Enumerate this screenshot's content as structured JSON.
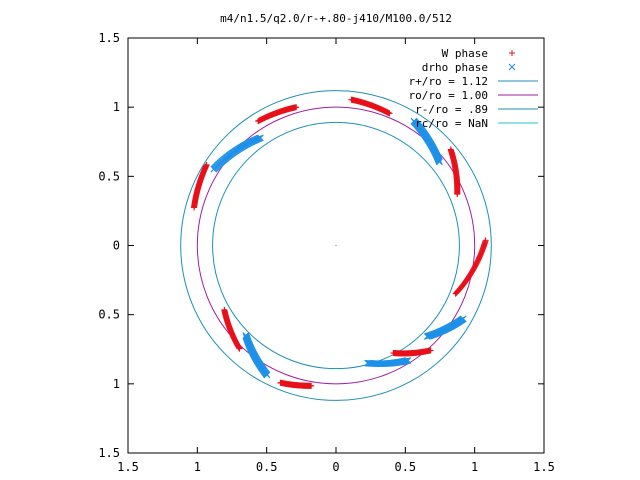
{
  "chart_data": {
    "type": "scatter",
    "title": "m4/n1.5/q2.0/r-+.80-j410/M100.0/512",
    "xlim": [
      -1.5,
      1.5
    ],
    "ylim": [
      -1.5,
      1.5
    ],
    "x_ticks": [
      -1.5,
      -1,
      -0.5,
      0,
      0.5,
      1,
      1.5
    ],
    "y_ticks": [
      -1.5,
      -1,
      -0.5,
      0,
      0.5,
      1,
      1.5
    ],
    "x_tick_labels": [
      "1.5",
      "1",
      "0.5",
      "0",
      "0.5",
      "1",
      "1.5"
    ],
    "y_tick_labels": [
      "1.5",
      "1",
      "0.5",
      "0",
      "0.5",
      "1",
      "1.5"
    ],
    "grid": false,
    "legend_position": "top-right",
    "circles": [
      {
        "name": "r+/ro = 1.12",
        "radius": 1.12,
        "color": "#1e90b4"
      },
      {
        "name": "ro/ro = 1.00",
        "radius": 1.0,
        "color": "#a020a0"
      },
      {
        "name": "r-/ro = .89",
        "radius": 0.89,
        "color": "#1e90b4"
      },
      {
        "name": "rc/ro = NaN",
        "radius": null,
        "color": "#20c0d0"
      }
    ],
    "series": [
      {
        "name": "W phase",
        "marker": "plus",
        "color": "#e8101a",
        "arcs": [
          {
            "r": [
              1.03,
              1.06
            ],
            "theta": [
              68,
              84
            ]
          },
          {
            "r": [
              0.95,
              1.08
            ],
            "theta": [
              23,
              40
            ]
          },
          {
            "r": [
              0.93,
              1.08
            ],
            "theta": [
              -22,
              2
            ]
          },
          {
            "r": [
              0.88,
              1.02
            ],
            "theta": [
              -62,
              -48
            ]
          },
          {
            "r": [
              1.03,
              1.07
            ],
            "theta": [
              -100,
              -112
            ]
          },
          {
            "r": [
              0.93,
              1.02
            ],
            "theta": [
              -150,
              -133
            ]
          },
          {
            "r": [
              1.06,
              1.1
            ],
            "theta": [
              165,
              148
            ]
          },
          {
            "r": [
              1.04,
              1.06
            ],
            "theta": [
              106,
              122
            ]
          }
        ]
      },
      {
        "name": "drho phase",
        "marker": "cross",
        "color": "#1e90e8",
        "arcs": [
          {
            "r": [
              0.96,
              1.06
            ],
            "theta": [
              39,
              58
            ]
          },
          {
            "r": [
              0.93,
              1.06
            ],
            "theta": [
              -45,
              -30
            ]
          },
          {
            "r": [
              0.88,
              0.98
            ],
            "theta": [
              -75,
              -58
            ]
          },
          {
            "r": [
              0.92,
              1.06
            ],
            "theta": [
              -135,
              -118
            ]
          },
          {
            "r": [
              0.95,
              1.04
            ],
            "theta": [
              125,
              148
            ]
          }
        ]
      }
    ]
  }
}
